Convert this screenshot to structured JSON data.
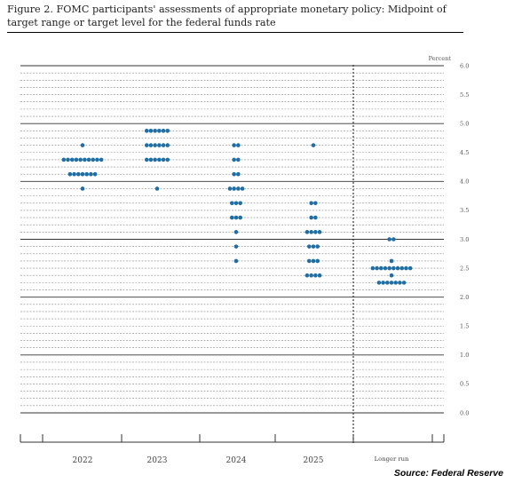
{
  "title": "Figure 2.  FOMC participants' assessments of appropriate monetary policy:  Midpoint of target range or target level for the federal funds rate",
  "source": "Source: Federal Reserve",
  "chart_data": {
    "type": "scatter",
    "title": "Figure 2.  FOMC participants' assessments of appropriate monetary policy:  Midpoint of target range or target level for the federal funds rate",
    "ylabel": "Percent",
    "ylim": [
      0,
      6
    ],
    "y_ticks": [
      "6.0",
      "5.5",
      "5.0",
      "4.5",
      "4.0",
      "3.5",
      "3.0",
      "2.5",
      "2.0",
      "1.5",
      "1.0",
      "0.5",
      "0.0"
    ],
    "categories": [
      "2022",
      "2023",
      "2024",
      "2025",
      "Longer run"
    ],
    "dot_color": "#1f6ea4",
    "grid": true,
    "dots": [
      {
        "category": "2022",
        "y": 4.625,
        "count": 1
      },
      {
        "category": "2022",
        "y": 4.375,
        "count": 10
      },
      {
        "category": "2022",
        "y": 4.125,
        "count": 7
      },
      {
        "category": "2022",
        "y": 3.875,
        "count": 1
      },
      {
        "category": "2023",
        "y": 4.875,
        "count": 6
      },
      {
        "category": "2023",
        "y": 4.625,
        "count": 6
      },
      {
        "category": "2023",
        "y": 4.375,
        "count": 6
      },
      {
        "category": "2023",
        "y": 3.875,
        "count": 1
      },
      {
        "category": "2024",
        "y": 4.625,
        "count": 2
      },
      {
        "category": "2024",
        "y": 4.375,
        "count": 2
      },
      {
        "category": "2024",
        "y": 4.125,
        "count": 2
      },
      {
        "category": "2024",
        "y": 3.875,
        "count": 4
      },
      {
        "category": "2024",
        "y": 3.625,
        "count": 3
      },
      {
        "category": "2024",
        "y": 3.375,
        "count": 3
      },
      {
        "category": "2024",
        "y": 3.125,
        "count": 1
      },
      {
        "category": "2024",
        "y": 2.875,
        "count": 1
      },
      {
        "category": "2024",
        "y": 2.625,
        "count": 1
      },
      {
        "category": "2025",
        "y": 4.625,
        "count": 1
      },
      {
        "category": "2025",
        "y": 3.625,
        "count": 2
      },
      {
        "category": "2025",
        "y": 3.375,
        "count": 2
      },
      {
        "category": "2025",
        "y": 3.125,
        "count": 4
      },
      {
        "category": "2025",
        "y": 2.875,
        "count": 3
      },
      {
        "category": "2025",
        "y": 2.625,
        "count": 3
      },
      {
        "category": "2025",
        "y": 2.375,
        "count": 4
      },
      {
        "category": "Longer run",
        "y": 3.0,
        "count": 2
      },
      {
        "category": "Longer run",
        "y": 2.625,
        "count": 1
      },
      {
        "category": "Longer run",
        "y": 2.5,
        "count": 10
      },
      {
        "category": "Longer run",
        "y": 2.375,
        "count": 1
      },
      {
        "category": "Longer run",
        "y": 2.25,
        "count": 7
      }
    ]
  }
}
